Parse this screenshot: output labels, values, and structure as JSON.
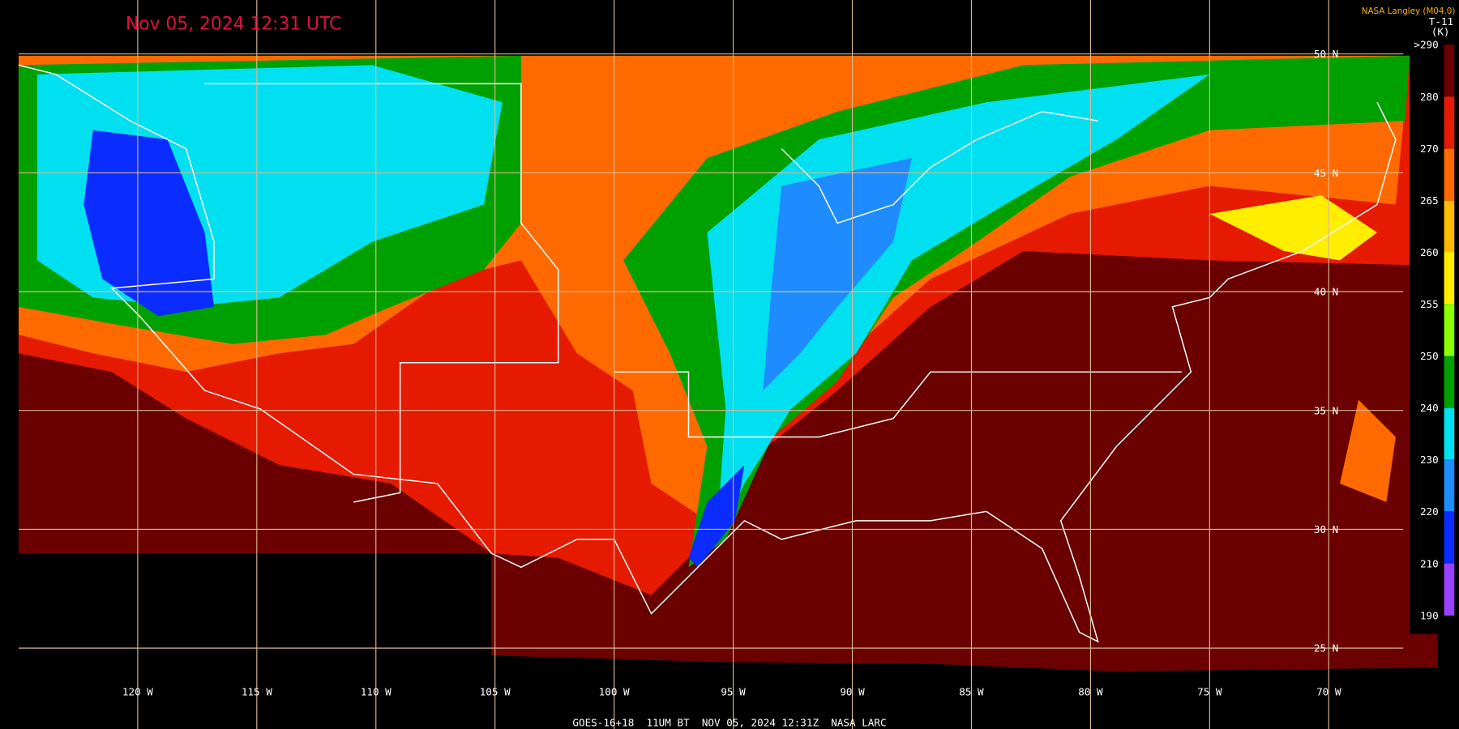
{
  "header": {
    "timestamp": "Nov 05, 2024 12:31 UTC",
    "source": "NASA Langley (M04.0)",
    "channel": "T-11",
    "unit": "(K)"
  },
  "colorbar": {
    "labels": [
      ">290",
      "280",
      "270",
      "265",
      "260",
      "255",
      "250",
      "240",
      "230",
      "220",
      "210",
      "190"
    ]
  },
  "latitude_labels": [
    "50 N",
    "45 N",
    "40 N",
    "35 N",
    "30 N",
    "25 N"
  ],
  "longitude_labels": [
    "120 W",
    "115 W",
    "110 W",
    "105 W",
    "100 W",
    "95 W",
    "90 W",
    "85 W",
    "80 W",
    "75 W",
    "70 W"
  ],
  "footer": "GOES-16+18  11UM BT  NOV 05, 2024 12:31Z  NASA LARC"
}
